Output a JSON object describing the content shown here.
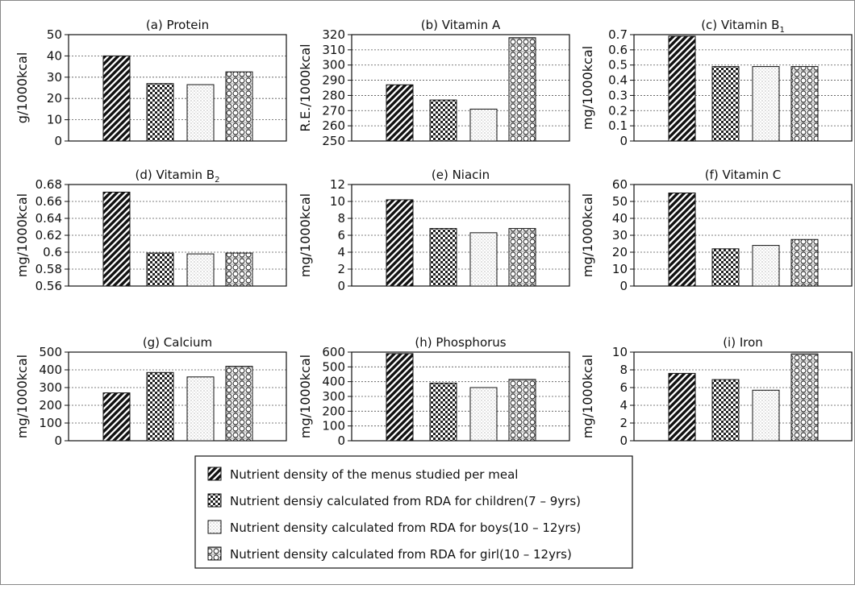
{
  "chart_data": [
    {
      "type": "bar",
      "title": "(a)  Protein",
      "ylabel": "g/1000kcal",
      "ylim": [
        0,
        50
      ],
      "yticks": [
        "0",
        "10",
        "20",
        "30",
        "40",
        "50"
      ],
      "values": [
        40,
        27,
        26.5,
        32.5
      ]
    },
    {
      "type": "bar",
      "title": "(b)  Vitamin  A",
      "ylabel": "R.E./1000kcal",
      "ylim": [
        250,
        320
      ],
      "yticks": [
        "250",
        "260",
        "270",
        "280",
        "290",
        "300",
        "310",
        "320"
      ],
      "values": [
        287,
        277,
        271,
        318
      ]
    },
    {
      "type": "bar",
      "title": "(c)  Vitamin  B",
      "title_sub": "1",
      "ylabel": "mg/1000kcal",
      "ylim": [
        0,
        0.7
      ],
      "yticks": [
        "0",
        "0.1",
        "0.2",
        "0.3",
        "0.4",
        "0.5",
        "0.6",
        "0.7"
      ],
      "values": [
        0.69,
        0.49,
        0.49,
        0.49
      ]
    },
    {
      "type": "bar",
      "title": "(d)  Vitamin  B",
      "title_sub": "2",
      "ylabel": "mg/1000kcal",
      "ylim": [
        0.56,
        0.68
      ],
      "yticks": [
        "0.56",
        "0.58",
        "0.6",
        "0.62",
        "0.64",
        "0.66",
        "0.68"
      ],
      "values": [
        0.671,
        0.599,
        0.598,
        0.599
      ]
    },
    {
      "type": "bar",
      "title": "(e)  Niacin",
      "ylabel": "mg/1000kcal",
      "ylim": [
        0,
        12
      ],
      "yticks": [
        "0",
        "2",
        "4",
        "6",
        "8",
        "10",
        "12"
      ],
      "values": [
        10.2,
        6.8,
        6.3,
        6.8
      ]
    },
    {
      "type": "bar",
      "title": "(f)  Vitamin  C",
      "ylabel": "mg/1000kcal",
      "ylim": [
        0,
        60
      ],
      "yticks": [
        "0",
        "10",
        "20",
        "30",
        "40",
        "50",
        "60"
      ],
      "values": [
        55,
        22,
        24,
        27.5
      ]
    },
    {
      "type": "bar",
      "title": "(g)  Calcium",
      "ylabel": "mg/1000kcal",
      "ylim": [
        0,
        500
      ],
      "yticks": [
        "0",
        "100",
        "200",
        "300",
        "400",
        "500"
      ],
      "values": [
        270,
        385,
        360,
        420
      ]
    },
    {
      "type": "bar",
      "title": "(h)  Phosphorus",
      "ylabel": "mg/1000kcal",
      "ylim": [
        0,
        600
      ],
      "yticks": [
        "0",
        "100",
        "200",
        "300",
        "400",
        "500",
        "600"
      ],
      "values": [
        590,
        390,
        360,
        415
      ]
    },
    {
      "type": "bar",
      "title": "(i)  Iron",
      "ylabel": "mg/1000kcal",
      "ylim": [
        0,
        10
      ],
      "yticks": [
        "0",
        "2",
        "4",
        "6",
        "8",
        "10"
      ],
      "values": [
        7.6,
        6.9,
        5.7,
        9.8
      ]
    }
  ],
  "series": [
    {
      "name": "Nutrient density of the menus studied per meal",
      "pattern": "hatch"
    },
    {
      "name": "Nutrient densiy calculated from RDA for children(7 – 9yrs)",
      "pattern": "check"
    },
    {
      "name": "Nutrient density calculated from RDA for boys(10 – 12yrs)",
      "pattern": "dots"
    },
    {
      "name": "Nutrient density calculated from RDA for girl(10 – 12yrs)",
      "pattern": "circles"
    }
  ],
  "colors": {
    "ink": "#111111",
    "grid": "#444444",
    "background": "#ffffff"
  }
}
